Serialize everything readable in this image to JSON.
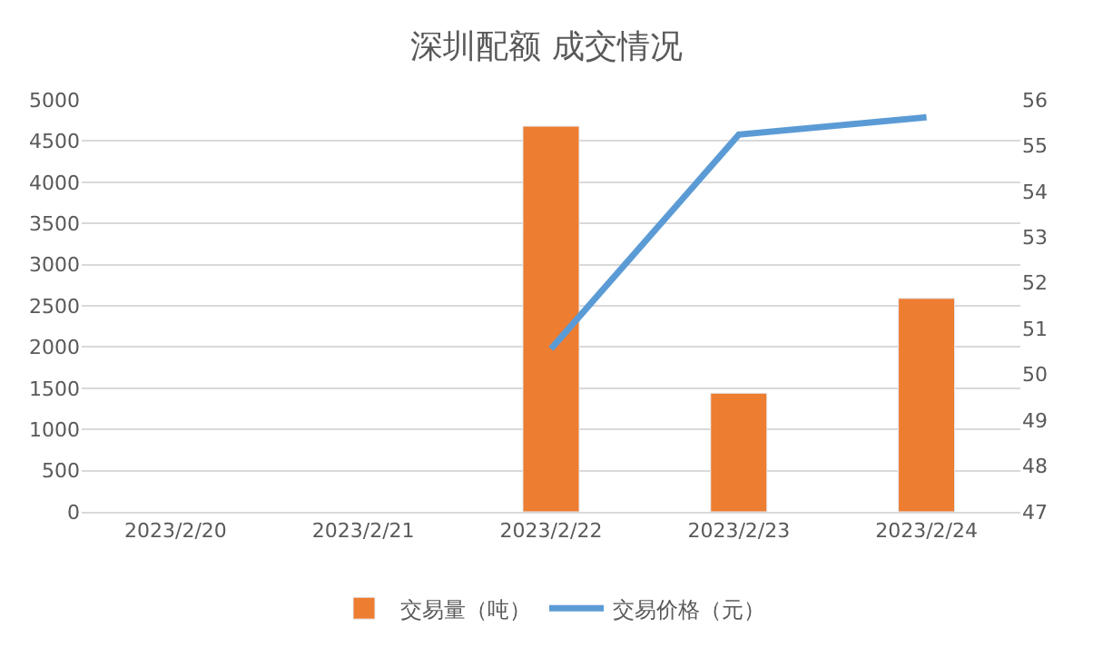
{
  "chart_data": {
    "type": "bar",
    "title": "深圳配额 成交情况",
    "categories": [
      "2023/2/20",
      "2023/2/21",
      "2023/2/22",
      "2023/2/23",
      "2023/2/24"
    ],
    "series": [
      {
        "name": "交易量（吨）",
        "color": "#ed7d31",
        "values": [
          null,
          null,
          4680,
          1440,
          2590
        ]
      },
      {
        "name": "交易价格（元）",
        "type": "line",
        "axis": "y2",
        "color": "#5b9bd5",
        "values": [
          null,
          null,
          50.56,
          55.24,
          55.62
        ]
      }
    ],
    "ylim": [
      0,
      5000
    ],
    "yticks": [
      0,
      500,
      1000,
      1500,
      2000,
      2500,
      3000,
      3500,
      4000,
      4500,
      5000
    ],
    "y2lim": [
      47,
      56
    ],
    "y2ticks": [
      47,
      48,
      49,
      50,
      51,
      52,
      53,
      54,
      55,
      56
    ],
    "grid": "y",
    "legend": "bottom",
    "marker": "none"
  }
}
